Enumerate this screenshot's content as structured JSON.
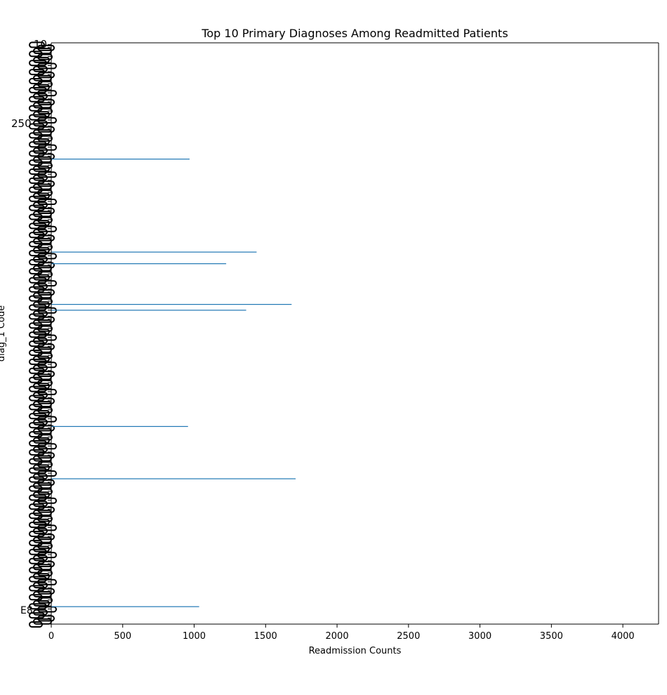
{
  "chart_data": {
    "type": "bar",
    "orientation": "horizontal",
    "title": "Top 10 Primary Diagnoses Among Readmitted Patients",
    "xlabel": "Readmission Counts",
    "ylabel": "diag_1 Code",
    "xlim": [
      0,
      4250
    ],
    "xticks": [
      0,
      500,
      1000,
      1500,
      2000,
      2500,
      3000,
      3500,
      4000
    ],
    "grid": false,
    "legend": "none",
    "bar_color": "#1f77b4",
    "overlapping_tick_labels": [
      "10",
      "250",
      "E8"
    ],
    "bars": [
      {
        "name": "bar-1",
        "value": 968,
        "category_position": 0.8
      },
      {
        "name": "bar-2",
        "value": 1437,
        "category_position": 0.64
      },
      {
        "name": "bar-3",
        "value": 1224,
        "category_position": 0.62
      },
      {
        "name": "bar-4",
        "value": 1682,
        "category_position": 0.55
      },
      {
        "name": "bar-5",
        "value": 1364,
        "category_position": 0.54
      },
      {
        "name": "bar-6",
        "value": 957,
        "category_position": 0.34
      },
      {
        "name": "bar-7",
        "value": 1710,
        "category_position": 0.25
      },
      {
        "name": "bar-8",
        "value": 1035,
        "category_position": 0.03
      }
    ]
  }
}
